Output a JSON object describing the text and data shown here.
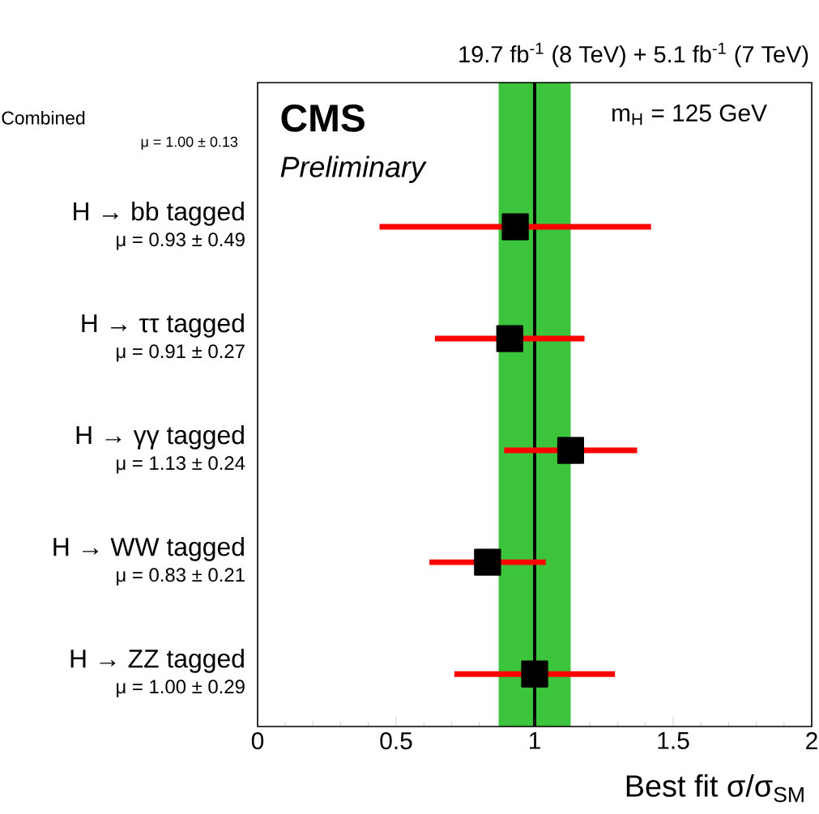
{
  "chart_data": {
    "type": "scatter",
    "orientation": "horizontal",
    "title": "19.7 fb$^{-1}$ (8 TeV) +  5.1 fb$^{-1}$ (7 TeV)",
    "xlabel": "Best fit σ/σ$_{SM}$",
    "annotations": [
      "**CMS**",
      "*Preliminary*",
      "m$_{H}$ = 125 GeV",
      "Combined",
      "μ = 1.00 ± 0.13"
    ],
    "categories": [
      "H → bb tagged",
      "H → ττ tagged",
      "H → γγ tagged",
      "H → WW tagged",
      "H → ZZ tagged"
    ],
    "series": [
      {
        "color": "#000000",
        "values": [
          0.93,
          0.91,
          1.13,
          0.83,
          1.0
        ],
        "errors": [
          0.49,
          0.27,
          0.24,
          0.21,
          0.29
        ],
        "value_labels": [
          "μ = 0.93 ± 0.49",
          "μ = 0.91 ± 0.27",
          "μ = 1.13 ± 0.24",
          "μ = 0.83 ± 0.21",
          "μ = 1.00 ± 0.29"
        ]
      }
    ],
    "bands": [
      {
        "axis": "x",
        "from": 0.87,
        "to": 1.13,
        "color": "#3cc43c"
      }
    ],
    "ref_lines": [
      {
        "axis": "x",
        "value": 1.0,
        "color": "#000000"
      }
    ],
    "xlim": [
      0,
      2
    ],
    "xticks": [
      0,
      0.5,
      1,
      1.5,
      2
    ],
    "marker": "square",
    "grid": false
  }
}
